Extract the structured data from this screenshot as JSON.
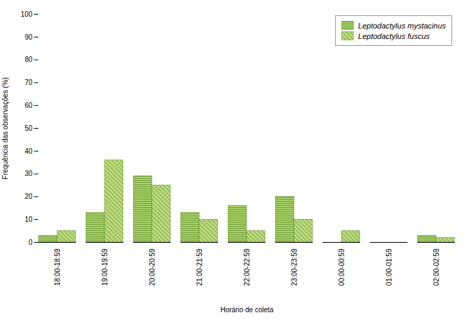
{
  "chart_data": {
    "type": "bar",
    "categories": [
      "18:00-18:59",
      "19:00-19:59",
      "20:00-20:59",
      "21:00-21:59",
      "22:00-22:59",
      "23:00-23:59",
      "00:00-00:59",
      "01:00-01:59",
      "02:00-02:59"
    ],
    "series": [
      {
        "name": "Leptodactylus mystacinus",
        "color": "#a8d068",
        "values": [
          3,
          13,
          29,
          13,
          16,
          20,
          0,
          0,
          3
        ]
      },
      {
        "name": "Leptodactylus fuscus",
        "color": "#b8d87a",
        "values": [
          5,
          36,
          25,
          10,
          5,
          10,
          5,
          0,
          2
        ]
      }
    ],
    "xlabel": "Horário de coleta",
    "ylabel": "Frequência das observações (%)",
    "ylim": [
      0,
      100
    ],
    "yticks": [
      0,
      10,
      20,
      30,
      40,
      50,
      60,
      70,
      80,
      90,
      100
    ],
    "grid": false,
    "legend": "upper right"
  }
}
